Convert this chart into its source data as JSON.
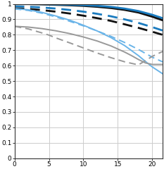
{
  "xlim": [
    0,
    21.5
  ],
  "ylim": [
    0,
    1.0
  ],
  "xticks": [
    0,
    5,
    10,
    15,
    20
  ],
  "yticks": [
    0,
    0.1,
    0.2,
    0.3,
    0.4,
    0.5,
    0.6,
    0.7,
    0.8,
    0.9,
    1.0
  ],
  "ytick_labels": [
    "0",
    "0.1",
    "0.2",
    "0.3",
    "0.4",
    "0.5",
    "0.6",
    "0.7",
    "0.8",
    "0.9",
    "1"
  ],
  "background_color": "#ffffff",
  "grid_color": "#cccccc",
  "curves": [
    {
      "name": "black_solid",
      "color": "#111111",
      "style": "solid",
      "lw": 2.2,
      "x": [
        0,
        2,
        4,
        6,
        8,
        10,
        12,
        14,
        16,
        18,
        20,
        21.5
      ],
      "y": [
        1.0,
        1.0,
        0.998,
        0.995,
        0.992,
        0.988,
        0.982,
        0.974,
        0.962,
        0.945,
        0.918,
        0.895
      ]
    },
    {
      "name": "black_dashed",
      "color": "#111111",
      "style": "dashed",
      "lw": 2.0,
      "x": [
        0,
        2,
        4,
        6,
        8,
        10,
        12,
        14,
        16,
        18,
        20,
        21.5
      ],
      "y": [
        0.972,
        0.968,
        0.96,
        0.95,
        0.938,
        0.924,
        0.908,
        0.89,
        0.868,
        0.845,
        0.82,
        0.8
      ]
    },
    {
      "name": "blue_solid",
      "color": "#1a7bbf",
      "style": "solid",
      "lw": 2.0,
      "x": [
        0,
        2,
        4,
        6,
        8,
        10,
        12,
        14,
        16,
        18,
        20,
        21.5
      ],
      "y": [
        1.0,
        1.0,
        0.999,
        0.997,
        0.995,
        0.992,
        0.988,
        0.981,
        0.97,
        0.954,
        0.93,
        0.908
      ]
    },
    {
      "name": "blue_dashed",
      "color": "#1a7bbf",
      "style": "dashed",
      "lw": 2.0,
      "x": [
        0,
        2,
        4,
        6,
        8,
        10,
        12,
        14,
        16,
        18,
        20,
        21.5
      ],
      "y": [
        0.985,
        0.982,
        0.977,
        0.97,
        0.961,
        0.95,
        0.936,
        0.92,
        0.9,
        0.877,
        0.85,
        0.828
      ]
    },
    {
      "name": "lightblue_solid",
      "color": "#6ab4e8",
      "style": "solid",
      "lw": 1.4,
      "x": [
        0,
        2,
        4,
        6,
        8,
        10,
        12,
        14,
        16,
        18,
        19,
        20,
        21.5
      ],
      "y": [
        0.97,
        0.962,
        0.945,
        0.922,
        0.895,
        0.862,
        0.825,
        0.782,
        0.73,
        0.665,
        0.628,
        0.592,
        0.548
      ]
    },
    {
      "name": "lightblue_dashed",
      "color": "#6ab4e8",
      "style": "dashed",
      "lw": 1.4,
      "x": [
        0,
        2,
        4,
        6,
        8,
        10,
        12,
        14,
        16,
        18,
        20,
        21.5
      ],
      "y": [
        0.968,
        0.958,
        0.94,
        0.916,
        0.888,
        0.858,
        0.825,
        0.79,
        0.75,
        0.705,
        0.655,
        0.625
      ]
    },
    {
      "name": "gray_solid",
      "color": "#999999",
      "style": "solid",
      "lw": 1.4,
      "x": [
        0,
        2,
        4,
        6,
        8,
        10,
        12,
        14,
        16,
        17,
        18,
        19,
        20,
        21.5
      ],
      "y": [
        0.855,
        0.85,
        0.84,
        0.826,
        0.808,
        0.786,
        0.76,
        0.728,
        0.688,
        0.665,
        0.64,
        0.618,
        0.608,
        0.608
      ]
    },
    {
      "name": "gray_dashed",
      "color": "#999999",
      "style": "dashed",
      "lw": 1.4,
      "x": [
        0,
        2,
        4,
        5,
        6,
        8,
        10,
        12,
        14,
        16,
        18,
        20,
        21.5
      ],
      "y": [
        0.855,
        0.838,
        0.812,
        0.798,
        0.78,
        0.748,
        0.715,
        0.682,
        0.652,
        0.625,
        0.605,
        0.66,
        0.692
      ]
    }
  ]
}
